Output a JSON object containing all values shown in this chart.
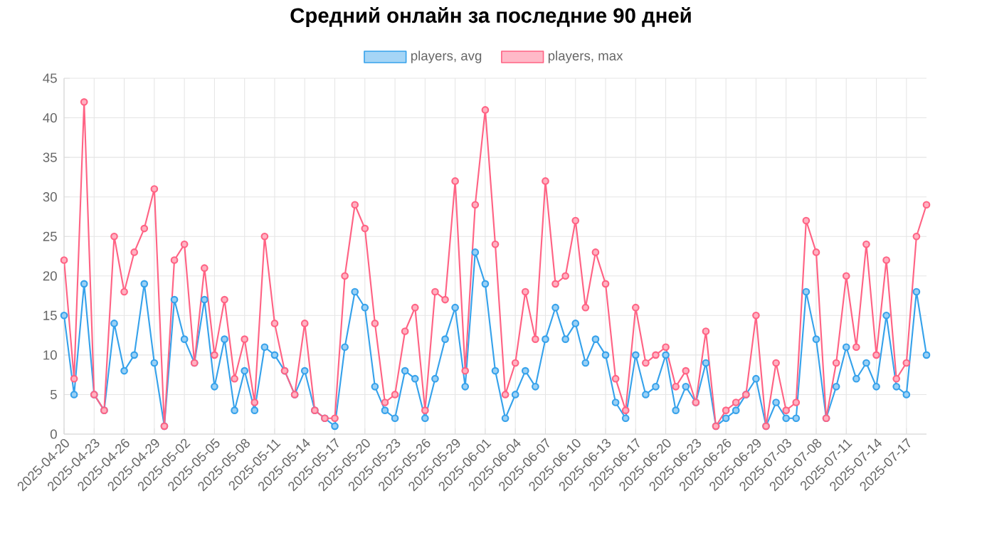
{
  "chart_data": {
    "type": "line",
    "title": "Средний онлайн за последние 90 дней",
    "categories": [
      "2025-04-20",
      null,
      null,
      "2025-04-23",
      null,
      null,
      "2025-04-26",
      null,
      null,
      "2025-04-29",
      null,
      null,
      "2025-05-02",
      null,
      null,
      "2025-05-05",
      null,
      null,
      "2025-05-08",
      null,
      null,
      "2025-05-11",
      null,
      null,
      "2025-05-14",
      null,
      null,
      "2025-05-17",
      null,
      null,
      "2025-05-20",
      null,
      null,
      "2025-05-23",
      null,
      null,
      "2025-05-26",
      null,
      null,
      "2025-05-29",
      null,
      null,
      "2025-06-01",
      null,
      null,
      "2025-06-04",
      null,
      null,
      "2025-06-07",
      null,
      null,
      "2025-06-10",
      null,
      null,
      "2025-06-13",
      null,
      null,
      "2025-06-17",
      null,
      null,
      "2025-06-20",
      null,
      null,
      "2025-06-23",
      null,
      null,
      "2025-06-26",
      null,
      null,
      "2025-06-29",
      null,
      null,
      "2025-07-03",
      null,
      null,
      "2025-07-08",
      null,
      null,
      "2025-07-11",
      null,
      null,
      "2025-07-14",
      null,
      null,
      "2025-07-17",
      null,
      null
    ],
    "series": [
      {
        "name": "players, avg",
        "color": "#36a2eb",
        "values": [
          15,
          5,
          19,
          5,
          3,
          14,
          8,
          10,
          19,
          9,
          1,
          17,
          12,
          9,
          17,
          6,
          12,
          3,
          8,
          3,
          11,
          10,
          8,
          5,
          8,
          3,
          2,
          1,
          11,
          18,
          16,
          6,
          3,
          2,
          8,
          7,
          2,
          7,
          12,
          16,
          6,
          23,
          19,
          8,
          2,
          5,
          8,
          6,
          12,
          16,
          12,
          14,
          9,
          12,
          10,
          4,
          2,
          10,
          5,
          6,
          10,
          3,
          6,
          4,
          9,
          1,
          2,
          3,
          5,
          7,
          1,
          4,
          2,
          2,
          18,
          12,
          2,
          6,
          11,
          7,
          9,
          6,
          15,
          6,
          5,
          18,
          10
        ]
      },
      {
        "name": "players, max",
        "color": "#ff6384",
        "values": [
          22,
          7,
          42,
          5,
          3,
          25,
          18,
          23,
          26,
          31,
          1,
          22,
          24,
          9,
          21,
          10,
          17,
          7,
          12,
          4,
          25,
          14,
          8,
          5,
          14,
          3,
          2,
          2,
          20,
          29,
          26,
          14,
          4,
          5,
          13,
          16,
          3,
          18,
          17,
          32,
          8,
          29,
          41,
          24,
          5,
          9,
          18,
          12,
          32,
          19,
          20,
          27,
          16,
          23,
          19,
          7,
          3,
          16,
          9,
          10,
          11,
          6,
          8,
          4,
          13,
          1,
          3,
          4,
          5,
          15,
          1,
          9,
          3,
          4,
          27,
          23,
          2,
          9,
          20,
          11,
          24,
          10,
          22,
          7,
          9,
          25,
          29
        ]
      }
    ],
    "ylim": [
      0,
      45
    ],
    "yticks": [
      0,
      5,
      10,
      15,
      20,
      25,
      30,
      35,
      40,
      45
    ],
    "grid": true,
    "legend": "top",
    "marker": "circle"
  }
}
